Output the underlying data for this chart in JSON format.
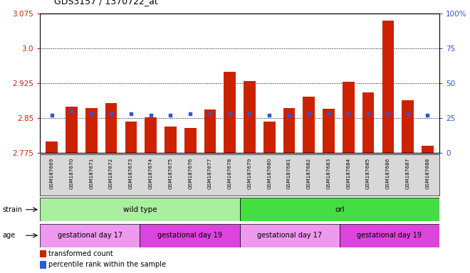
{
  "title": "GDS3157 / 1370722_at",
  "samples": [
    "GSM187669",
    "GSM187670",
    "GSM187671",
    "GSM187672",
    "GSM187673",
    "GSM187674",
    "GSM187675",
    "GSM187676",
    "GSM187677",
    "GSM187678",
    "GSM187679",
    "GSM187680",
    "GSM187681",
    "GSM187682",
    "GSM187683",
    "GSM187684",
    "GSM187685",
    "GSM187686",
    "GSM187687",
    "GSM187688"
  ],
  "red_values": [
    2.8,
    2.875,
    2.872,
    2.882,
    2.843,
    2.851,
    2.832,
    2.829,
    2.868,
    2.95,
    2.93,
    2.843,
    2.872,
    2.896,
    2.87,
    2.928,
    2.906,
    3.06,
    2.888,
    2.79
  ],
  "blue_values": [
    27,
    30,
    28,
    28,
    28,
    27,
    27,
    28,
    28,
    28,
    28,
    27,
    27,
    28,
    28,
    28,
    28,
    28,
    28,
    27
  ],
  "ymin": 2.775,
  "ymax": 3.075,
  "y_ticks_left": [
    2.775,
    2.85,
    2.925,
    3.0,
    3.075
  ],
  "y_ticks_right": [
    0,
    25,
    50,
    75,
    100
  ],
  "ytick_right_labels": [
    "0",
    "25",
    "50",
    "75",
    "100%"
  ],
  "bar_color": "#cc2200",
  "blue_color": "#3355cc",
  "strain_color_wt": "#aaeea0",
  "strain_color_orl": "#44dd44",
  "age_color_17": "#ee99ee",
  "age_color_19": "#dd44dd",
  "legend_red_label": "transformed count",
  "legend_blue_label": "percentile rank within the sample",
  "xtick_bg": "#d8d8d8",
  "fig_bg": "#ffffff"
}
